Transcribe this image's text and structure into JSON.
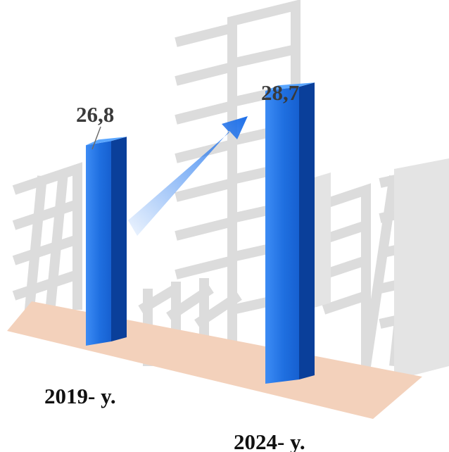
{
  "chart_data": {
    "type": "bar",
    "title": "",
    "xlabel": "",
    "ylabel": "",
    "categories": [
      "2019- y.",
      "2024- y."
    ],
    "values": [
      26.8,
      28.7
    ],
    "value_labels": [
      "26,8",
      "28,7"
    ],
    "grid": false,
    "legend": "none",
    "style": "3d-columns",
    "trend_arrow": "up"
  },
  "colors": {
    "bar_front": "#1f6fe0",
    "bar_side": "#0a3f9a",
    "bar_top": "#5aa6ff",
    "floor": "#f1cdb4",
    "arrow": "#2f7ff0",
    "background_buildings": "#d9d9d9"
  }
}
